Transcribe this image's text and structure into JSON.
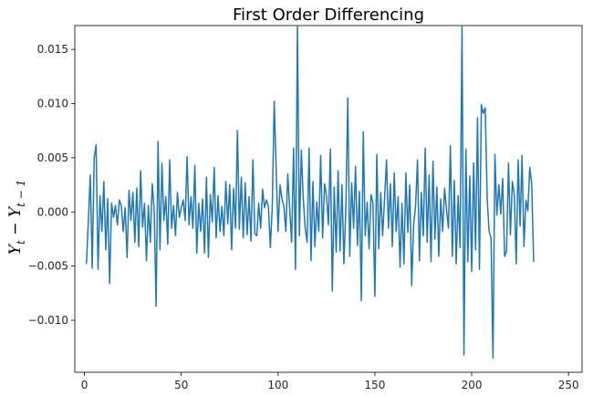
{
  "chart_data": {
    "type": "line",
    "title": "First Order Differencing",
    "xlabel": "",
    "ylabel": "Y_t − Y_{t−1}",
    "ylabel_parts": {
      "y1": "Y",
      "s1": "t",
      "op": " − ",
      "y2": "Y",
      "s2": "t − 1"
    },
    "xlim": [
      -5,
      257
    ],
    "ylim": [
      -0.0148,
      0.0172
    ],
    "x_ticks": [
      0,
      50,
      100,
      150,
      200,
      250
    ],
    "x_tick_labels": [
      "0",
      "50",
      "100",
      "150",
      "200",
      "250"
    ],
    "y_ticks": [
      -0.01,
      -0.005,
      0.0,
      0.005,
      0.01,
      0.015
    ],
    "y_tick_labels": [
      "−0.010",
      "−0.005",
      "0.000",
      "0.005",
      "0.010",
      "0.015"
    ],
    "grid": false,
    "legend": "none",
    "series": [
      {
        "color": "#1f77b4",
        "x_start": 1,
        "values": [
          -0.0048,
          -0.0008,
          0.0034,
          -0.0052,
          0.005,
          0.0062,
          -0.0053,
          0.0015,
          -0.0018,
          0.0028,
          -0.0035,
          0.0012,
          -0.0066,
          0.0008,
          -0.0005,
          0.0006,
          -0.0012,
          0.0011,
          0.0006,
          -0.0018,
          0.0004,
          -0.0042,
          0.002,
          -0.0008,
          0.0018,
          -0.0028,
          0.0022,
          -0.0032,
          0.0038,
          -0.0014,
          0.0008,
          -0.0045,
          0.0006,
          -0.0028,
          0.0026,
          0.0002,
          -0.0087,
          0.0065,
          -0.0035,
          0.0045,
          -0.0008,
          0.0014,
          -0.003,
          0.0048,
          -0.0015,
          0.0006,
          -0.0022,
          0.0018,
          -0.0005,
          0.0004,
          0.0011,
          -0.0008,
          0.0051,
          -0.0012,
          0.0014,
          -0.0015,
          0.0043,
          -0.0038,
          0.0008,
          -0.0018,
          0.0012,
          -0.0038,
          0.0032,
          -0.0042,
          0.0016,
          -0.0009,
          0.0041,
          -0.0024,
          0.0015,
          -0.0018,
          0.0005,
          -0.0022,
          0.0028,
          -0.0011,
          0.0025,
          -0.0035,
          0.0022,
          -0.0015,
          0.0075,
          -0.0016,
          0.0032,
          -0.0024,
          0.0027,
          -0.0021,
          0.0014,
          -0.0027,
          0.0048,
          -0.002,
          -0.0022,
          0.0008,
          -0.0015,
          0.0021,
          0.0004,
          0.0011,
          0.0005,
          -0.0033,
          0.0006,
          0.0102,
          0.004,
          -0.0018,
          0.0025,
          0.0012,
          0.0005,
          -0.0018,
          0.0035,
          0.0002,
          -0.0028,
          0.0059,
          -0.0053,
          0.0171,
          -0.0022,
          0.0057,
          0.0012,
          -0.0015,
          -0.0028,
          0.0059,
          -0.0045,
          0.0028,
          -0.0032,
          0.0009,
          -0.0018,
          0.0052,
          -0.0024,
          0.0026,
          0.0015,
          -0.0012,
          0.0058,
          -0.0073,
          0.0023,
          -0.0037,
          0.0038,
          -0.0036,
          0.0025,
          -0.0048,
          0.0004,
          0.0105,
          -0.0041,
          0.0027,
          -0.0015,
          0.0042,
          -0.0031,
          0.0019,
          -0.0082,
          0.0074,
          -0.0022,
          0.0009,
          -0.0034,
          0.0016,
          0.0008,
          -0.0078,
          0.0053,
          -0.0034,
          0.0018,
          -0.0022,
          0.0012,
          0.0048,
          -0.0015,
          0.0026,
          -0.0032,
          0.0036,
          -0.0018,
          0.0014,
          -0.0051,
          0.0008,
          -0.0048,
          0.0036,
          -0.0019,
          0.0025,
          -0.0068,
          -0.0012,
          0.0005,
          0.0048,
          -0.0045,
          0.0018,
          -0.0022,
          0.0059,
          -0.0028,
          0.0034,
          -0.0046,
          0.0047,
          -0.0025,
          0.0023,
          -0.0041,
          0.0012,
          -0.0018,
          0.0022,
          0.0002,
          -0.0015,
          0.0061,
          -0.0041,
          0.0029,
          -0.0048,
          0.0015,
          -0.0033,
          0.0171,
          -0.0132,
          0.0058,
          -0.0046,
          0.0033,
          -0.0055,
          0.0045,
          -0.0035,
          0.0087,
          -0.0053,
          0.0099,
          0.0091,
          0.0096,
          0.0012,
          -0.0018,
          -0.0024,
          -0.0135,
          0.0053,
          -0.0003,
          0.0025,
          -0.0002,
          0.0031,
          -0.0041,
          -0.0036,
          0.0045,
          -0.0021,
          0.0028,
          0.0016,
          -0.0048,
          0.0048,
          -0.0013,
          0.0052,
          -0.0032,
          0.0011,
          0.0001,
          0.0041,
          0.0026,
          -0.0046
        ]
      }
    ]
  }
}
